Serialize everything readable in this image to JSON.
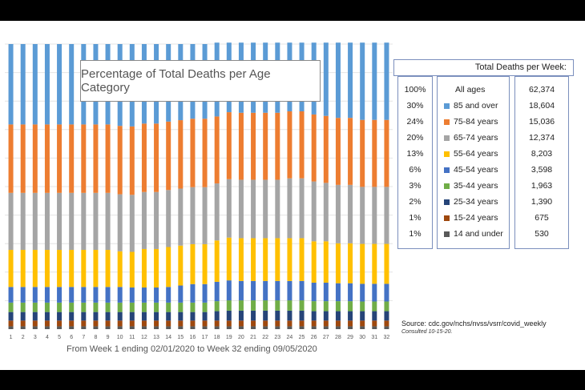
{
  "chart_data": {
    "type": "bar",
    "stacked": true,
    "title": "Percentage of Total  Deaths per Age Category",
    "xlabel": "From Week 1 ending 02/01/2020 to Week 32 ending 09/05/2020",
    "categories": [
      "1",
      "2",
      "3",
      "4",
      "5",
      "6",
      "7",
      "8",
      "9",
      "10",
      "11",
      "12",
      "13",
      "14",
      "15",
      "16",
      "17",
      "18",
      "19",
      "20",
      "21",
      "22",
      "23",
      "24",
      "25",
      "26",
      "27",
      "28",
      "29",
      "30",
      "31",
      "32"
    ],
    "ylim": [
      0,
      100
    ],
    "series": [
      {
        "name": "14 and under",
        "color": "#595959",
        "values": [
          1,
          1,
          1,
          1,
          1,
          1,
          1,
          1,
          1,
          1,
          1,
          1,
          1,
          1,
          1,
          1,
          1,
          1,
          1,
          1,
          1,
          1,
          1,
          1,
          1,
          1,
          1,
          1,
          1,
          1,
          1,
          1
        ]
      },
      {
        "name": "15-24 years",
        "color": "#9e480e",
        "values": [
          2,
          2,
          2,
          2,
          2,
          2,
          2,
          2,
          2,
          2,
          2,
          2,
          2,
          2,
          2,
          2,
          2,
          2,
          2,
          2,
          2,
          2,
          2,
          2,
          2,
          2,
          2,
          2,
          2,
          2,
          2,
          2
        ]
      },
      {
        "name": "25-34 years",
        "color": "#264478",
        "values": [
          3,
          3,
          3,
          3,
          3,
          3,
          3,
          3,
          3,
          3,
          3,
          3,
          3,
          3,
          3,
          3,
          3,
          3.3,
          3.5,
          3.5,
          3.5,
          3.5,
          3.5,
          3.5,
          3.5,
          3.3,
          3.3,
          3.3,
          3.3,
          3.3,
          3.3,
          3.3
        ]
      },
      {
        "name": "35-44 years",
        "color": "#70ad47",
        "values": [
          3.3,
          3.3,
          3.3,
          3.3,
          3.3,
          3.3,
          3.3,
          3.3,
          3.3,
          3.3,
          3.3,
          3.3,
          3.3,
          3.3,
          3.3,
          3.3,
          3.3,
          3.5,
          3.6,
          3.6,
          3.6,
          3.6,
          3.6,
          3.6,
          3.6,
          3.5,
          3.5,
          3.5,
          3.5,
          3.4,
          3.4,
          3.4
        ]
      },
      {
        "name": "45-54 years",
        "color": "#4472c4",
        "values": [
          5.5,
          5.5,
          5.5,
          5.5,
          5.5,
          5.5,
          5.5,
          5.5,
          5.5,
          5.5,
          5.3,
          5.3,
          5.3,
          5.5,
          6,
          6.5,
          6.5,
          6.8,
          7,
          6.8,
          6.8,
          6.8,
          6.8,
          6.8,
          6.8,
          6.5,
          6.5,
          6.3,
          6.3,
          6.2,
          6.2,
          6.2
        ]
      },
      {
        "name": "55-64 years",
        "color": "#ffc000",
        "values": [
          13,
          13,
          13,
          13,
          13,
          13,
          13,
          13,
          13,
          12.5,
          12.5,
          13.5,
          13.5,
          14,
          14,
          14,
          14,
          14.5,
          15,
          15,
          15,
          15,
          15,
          15,
          15,
          14.5,
          14.5,
          14,
          14,
          14,
          14,
          14
        ]
      },
      {
        "name": "65-74 years",
        "color": "#a5a5a5",
        "values": [
          20,
          20,
          20,
          20,
          20,
          20,
          20,
          20,
          20,
          20,
          20,
          20,
          20,
          20,
          20,
          20,
          20,
          20,
          20.5,
          20.5,
          20.5,
          20.5,
          20.5,
          21,
          21,
          21,
          20.5,
          20.5,
          20.5,
          20,
          20,
          20
        ]
      },
      {
        "name": "75-84 years",
        "color": "#ed7d31",
        "values": [
          24,
          24,
          24,
          24,
          24,
          24,
          24,
          24,
          24,
          24,
          24,
          24,
          24,
          24,
          24,
          24,
          24,
          23.5,
          23.5,
          23.5,
          23.5,
          23.5,
          23.5,
          23.5,
          23.5,
          23.5,
          23.5,
          23.5,
          23.5,
          23.5,
          23.5,
          23.5
        ]
      },
      {
        "name": "85 and over",
        "color": "#5b9bd5",
        "values": [
          28.2,
          28.2,
          28.2,
          28.2,
          28.2,
          28.2,
          28.2,
          28.2,
          28.2,
          28.7,
          28.9,
          27.9,
          27.9,
          27.2,
          26.7,
          26.2,
          26.2,
          25.9,
          24.4,
          24.6,
          24.6,
          24.6,
          24.6,
          24.1,
          24.1,
          25.2,
          25.7,
          26.4,
          26.4,
          27.1,
          27.1,
          27.1
        ]
      }
    ]
  },
  "legend": {
    "header": "Total Deaths per Week:",
    "rows": [
      {
        "pct": "100%",
        "label": "All ages",
        "count": "62,374",
        "color": ""
      },
      {
        "pct": "30%",
        "label": "85 and over",
        "count": "18,604",
        "color": "#5b9bd5"
      },
      {
        "pct": "24%",
        "label": "75-84 years",
        "count": "15,036",
        "color": "#ed7d31"
      },
      {
        "pct": "20%",
        "label": "65-74 years",
        "count": "12,374",
        "color": "#a5a5a5"
      },
      {
        "pct": "13%",
        "label": "55-64 years",
        "count": "8,203",
        "color": "#ffc000"
      },
      {
        "pct": "6%",
        "label": "45-54 years",
        "count": "3,598",
        "color": "#4472c4"
      },
      {
        "pct": "3%",
        "label": "35-44 years",
        "count": "1,963",
        "color": "#70ad47"
      },
      {
        "pct": "2%",
        "label": "25-34 years",
        "count": "1,390",
        "color": "#264478"
      },
      {
        "pct": "1%",
        "label": "15-24 years",
        "count": "675",
        "color": "#9e480e"
      },
      {
        "pct": "1%",
        "label": "14 and under",
        "count": "530",
        "color": "#595959"
      }
    ]
  },
  "source": "Source: cdc.gov/nchs/nvss/vsrr/covid_weekly",
  "consulted": "Consulted 10-15-20."
}
